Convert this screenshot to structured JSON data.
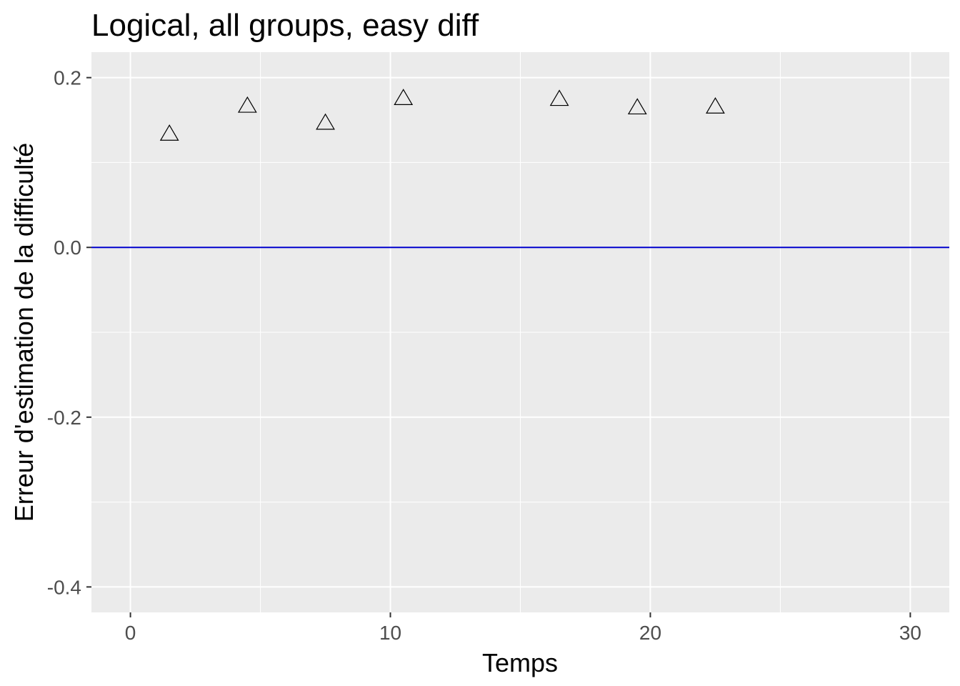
{
  "chart_data": {
    "type": "scatter",
    "title": "Logical, all groups, easy diff",
    "xlabel": "Temps",
    "ylabel": "Erreur d'estimation de la difficulté",
    "xlim": [
      -1.5,
      31.5
    ],
    "ylim": [
      -0.43,
      0.23
    ],
    "x_ticks": [
      0,
      10,
      20,
      30
    ],
    "x_tick_labels": [
      "0",
      "10",
      "20",
      "30"
    ],
    "y_ticks": [
      -0.4,
      -0.2,
      0.0,
      0.2
    ],
    "y_tick_labels": [
      "-0.4",
      "-0.2",
      "0.0",
      "0.2"
    ],
    "grid": true,
    "marker": "open-triangle",
    "points": [
      {
        "x": 1.5,
        "y": 0.133
      },
      {
        "x": 4.5,
        "y": 0.166
      },
      {
        "x": 7.5,
        "y": 0.146
      },
      {
        "x": 10.5,
        "y": 0.175
      },
      {
        "x": 16.5,
        "y": 0.174
      },
      {
        "x": 19.5,
        "y": 0.164
      },
      {
        "x": 22.5,
        "y": 0.165
      }
    ],
    "reference_line": {
      "y": 0.0,
      "color": "#0000cc"
    },
    "colors": {
      "panel": "#ebebeb",
      "grid": "#ffffff",
      "marker_stroke": "#000000",
      "tick_label": "#4d4d4d"
    }
  }
}
